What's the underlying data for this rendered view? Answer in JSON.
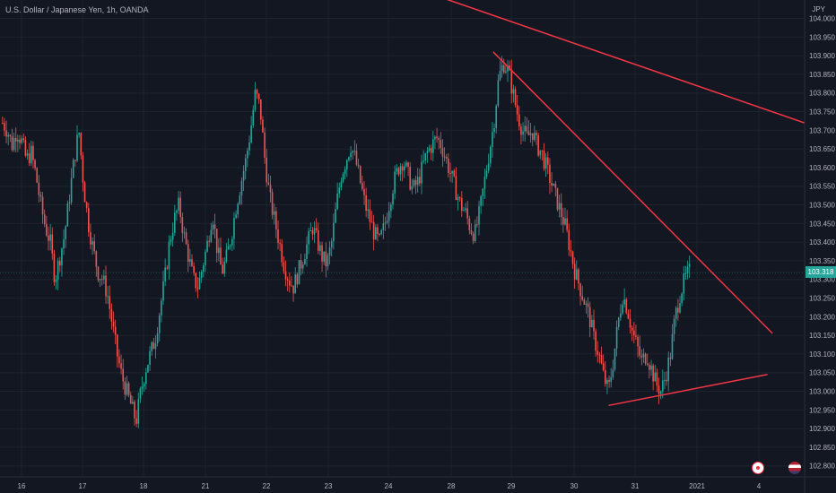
{
  "header": {
    "symbol_title": "U.S. Dollar / Japanese Yen, 1h, OANDA",
    "currency": "JPY"
  },
  "last_price": {
    "value": 103.318,
    "label": "103.318"
  },
  "colors": {
    "background": "#131722",
    "grid": "#1e222d",
    "up": "#26a69a",
    "down": "#ef5350",
    "trendline": "#f23645",
    "text": "#b2b5be"
  },
  "chart_data": {
    "type": "candlestick",
    "title": "U.S. Dollar / Japanese Yen, 1h, OANDA",
    "xlabel": "",
    "ylabel": "",
    "y_unit": "JPY",
    "ylim": [
      102.78,
      104.02
    ],
    "y_ticks": [
      "104.000",
      "103.950",
      "103.900",
      "103.850",
      "103.800",
      "103.750",
      "103.700",
      "103.650",
      "103.600",
      "103.550",
      "103.500",
      "103.450",
      "103.400",
      "103.350",
      "103.300",
      "103.250",
      "103.200",
      "103.150",
      "103.100",
      "103.050",
      "103.000",
      "102.950",
      "102.900",
      "102.850",
      "102.800"
    ],
    "x_ticks": [
      "16",
      "17",
      "18",
      "21",
      "22",
      "23",
      "24",
      "28",
      "29",
      "30",
      "31",
      "2021",
      "4"
    ],
    "grid": true,
    "series": [
      {
        "price_path": [
          103.72,
          103.7,
          103.66,
          103.7,
          103.67,
          103.62,
          103.64,
          103.58,
          103.5,
          103.44,
          103.4,
          103.3,
          103.36,
          103.42,
          103.52,
          103.62,
          103.7,
          103.55,
          103.45,
          103.38,
          103.32,
          103.3,
          103.26,
          103.18,
          103.1,
          103.04,
          103.0,
          102.96,
          102.92,
          103.0,
          103.06,
          103.1,
          103.14,
          103.22,
          103.3,
          103.4,
          103.46,
          103.5,
          103.42,
          103.36,
          103.3,
          103.28,
          103.34,
          103.4,
          103.48,
          103.38,
          103.32,
          103.36,
          103.42,
          103.5,
          103.56,
          103.62,
          103.7,
          103.8,
          103.76,
          103.62,
          103.52,
          103.46,
          103.4,
          103.34,
          103.3,
          103.28,
          103.32,
          103.36,
          103.4,
          103.44,
          103.4,
          103.36,
          103.34,
          103.4,
          103.5,
          103.58,
          103.62,
          103.66,
          103.62,
          103.56,
          103.5,
          103.46,
          103.42,
          103.4,
          103.44,
          103.5,
          103.56,
          103.6,
          103.62,
          103.58,
          103.54,
          103.56,
          103.6,
          103.64,
          103.66,
          103.68,
          103.66,
          103.62,
          103.58,
          103.54,
          103.5,
          103.48,
          103.44,
          103.42,
          103.48,
          103.56,
          103.64,
          103.72,
          103.84,
          103.88,
          103.86,
          103.8,
          103.74,
          103.7,
          103.68,
          103.7,
          103.66,
          103.64,
          103.6,
          103.56,
          103.52,
          103.48,
          103.44,
          103.38,
          103.32,
          103.28,
          103.24,
          103.2,
          103.14,
          103.1,
          103.04,
          103.0,
          103.08,
          103.18,
          103.26,
          103.22,
          103.16,
          103.12,
          103.08,
          103.1,
          103.06,
          103.02,
          103.0,
          103.04,
          103.1,
          103.2,
          103.26,
          103.3,
          103.32
        ]
      }
    ],
    "annotations": [
      {
        "type": "trendline",
        "from": {
          "x_frac": 0.497,
          "price": 104.08
        },
        "to": {
          "x_frac": 0.962,
          "price": 103.72
        }
      },
      {
        "type": "trendline",
        "from": {
          "x_frac": 0.59,
          "price": 103.91
        },
        "to": {
          "x_frac": 0.924,
          "price": 103.155
        }
      },
      {
        "type": "trendline",
        "from": {
          "x_frac": 0.728,
          "price": 102.962
        },
        "to": {
          "x_frac": 0.918,
          "price": 103.045
        }
      }
    ]
  }
}
